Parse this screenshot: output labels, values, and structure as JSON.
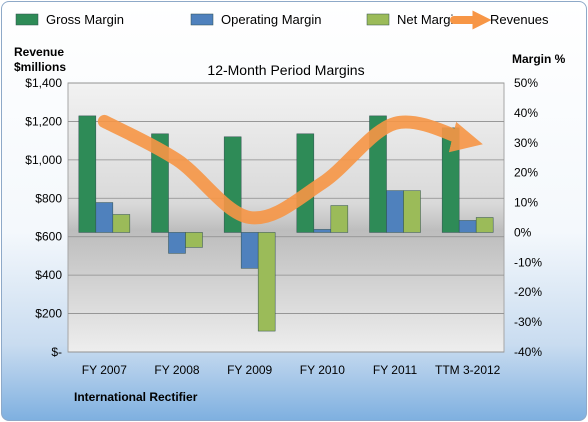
{
  "chart_data": {
    "type": "bar",
    "title": "12-Month Period Margins",
    "company": "International Rectifier",
    "categories": [
      "FY 2007",
      "FY 2008",
      "FY 2009",
      "FY 2010",
      "FY 2011",
      "TTM 3-2012"
    ],
    "left_axis": {
      "label_line1": "Revenue",
      "label_line2": "$millions",
      "range": [
        0,
        1400
      ],
      "tick_labels": [
        "$-",
        "$200",
        "$400",
        "$600",
        "$800",
        "$1,000",
        "$1,200",
        "$1,400"
      ]
    },
    "right_axis": {
      "label": "Margin %",
      "range": [
        -40,
        50
      ],
      "tick_labels": [
        "-40%",
        "-30%",
        "-20%",
        "-10%",
        "0%",
        "10%",
        "20%",
        "30%",
        "40%",
        "50%"
      ]
    },
    "series": [
      {
        "name": "Gross Margin",
        "type": "bar",
        "axis": "right",
        "color": "#2e8b57",
        "values": [
          39,
          33,
          32,
          33,
          39,
          35
        ]
      },
      {
        "name": "Operating Margin",
        "type": "bar",
        "axis": "right",
        "color": "#4f81bd",
        "values": [
          10,
          -7,
          -12,
          1,
          14,
          4
        ]
      },
      {
        "name": "Net Margin",
        "type": "bar",
        "axis": "right",
        "color": "#9bbb59",
        "values": [
          6,
          -5,
          -33,
          9,
          14,
          5
        ]
      },
      {
        "name": "Revenues",
        "type": "line",
        "axis": "left",
        "color": "#f79646",
        "values": [
          1200,
          1000,
          700,
          880,
          1190,
          1100
        ]
      }
    ],
    "grid": true,
    "legend_position": "top"
  }
}
